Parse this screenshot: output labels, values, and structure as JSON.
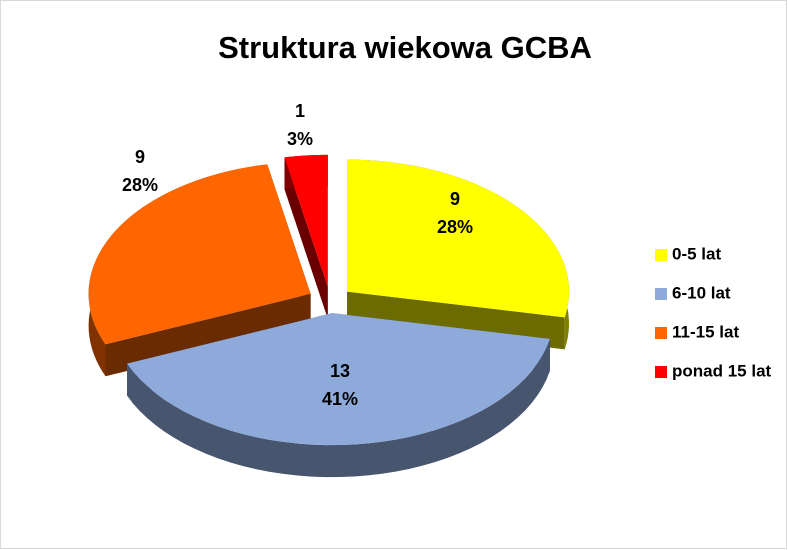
{
  "chart_data": {
    "type": "pie",
    "title": "Struktura wiekowa GCBA",
    "categories": [
      "0-5 lat",
      "6-10 lat",
      "11-15 lat",
      "ponad 15 lat"
    ],
    "values": [
      9,
      13,
      9,
      1
    ],
    "percent_labels": [
      "28%",
      "41%",
      "28%",
      "3%"
    ],
    "colors": [
      "#ffff00",
      "#8eaadb",
      "#ff6600",
      "#ff0000"
    ],
    "legend": "right"
  }
}
